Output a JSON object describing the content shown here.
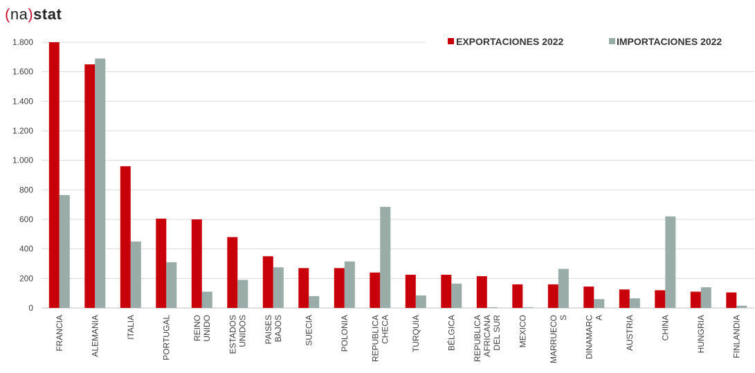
{
  "logo": {
    "open_paren": "(",
    "name": "na",
    "close_paren": ")",
    "word": "stat"
  },
  "colors": {
    "exports": "#c8000a",
    "imports": "#9aaca8",
    "grid": "#d9d9d9",
    "brand": "#c8102e"
  },
  "chart_data": {
    "type": "bar",
    "title": "",
    "xlabel": "",
    "ylabel": "",
    "ylim": [
      0,
      1800
    ],
    "yticks": [
      0,
      200,
      400,
      600,
      800,
      1000,
      1200,
      1400,
      1600,
      1800
    ],
    "ytick_labels": [
      "0",
      "200",
      "400",
      "600",
      "800",
      "1.000",
      "1.200",
      "1.400",
      "1.600",
      "1.800"
    ],
    "grid": true,
    "legend_position": "top-right",
    "categories": [
      [
        "FRANCIA"
      ],
      [
        "ALEMANIA"
      ],
      [
        "ITALIA"
      ],
      [
        "PORTUGAL"
      ],
      [
        "REINO",
        "UNIDO"
      ],
      [
        "ESTADOS",
        "UNIDOS"
      ],
      [
        "PAISES",
        "BAJOS"
      ],
      [
        "SUECIA"
      ],
      [
        "POLONIA"
      ],
      [
        "REPUBLICA",
        "CHECA"
      ],
      [
        "TURQUIA"
      ],
      [
        "BÉLGICA"
      ],
      [
        "REPUBLICA",
        "AFRICANA",
        "DEL SUR"
      ],
      [
        "MEXICO"
      ],
      [
        "MARRUECO",
        "S"
      ],
      [
        "DINAMARC",
        "A"
      ],
      [
        "AUSTRIA"
      ],
      [
        "CHINA"
      ],
      [
        "HUNGRIA"
      ],
      [
        "FINLANDIA"
      ]
    ],
    "series": [
      {
        "name": "EXPORTACIONES 2022",
        "color": "#c8000a",
        "values": [
          1800,
          1650,
          960,
          605,
          600,
          480,
          350,
          270,
          270,
          240,
          225,
          225,
          215,
          160,
          160,
          145,
          125,
          120,
          110,
          105
        ]
      },
      {
        "name": "IMPORTACIONES 2022",
        "color": "#9aaca8",
        "values": [
          765,
          1690,
          450,
          310,
          110,
          190,
          275,
          80,
          315,
          685,
          85,
          165,
          5,
          5,
          265,
          60,
          65,
          620,
          140,
          15
        ]
      }
    ]
  }
}
